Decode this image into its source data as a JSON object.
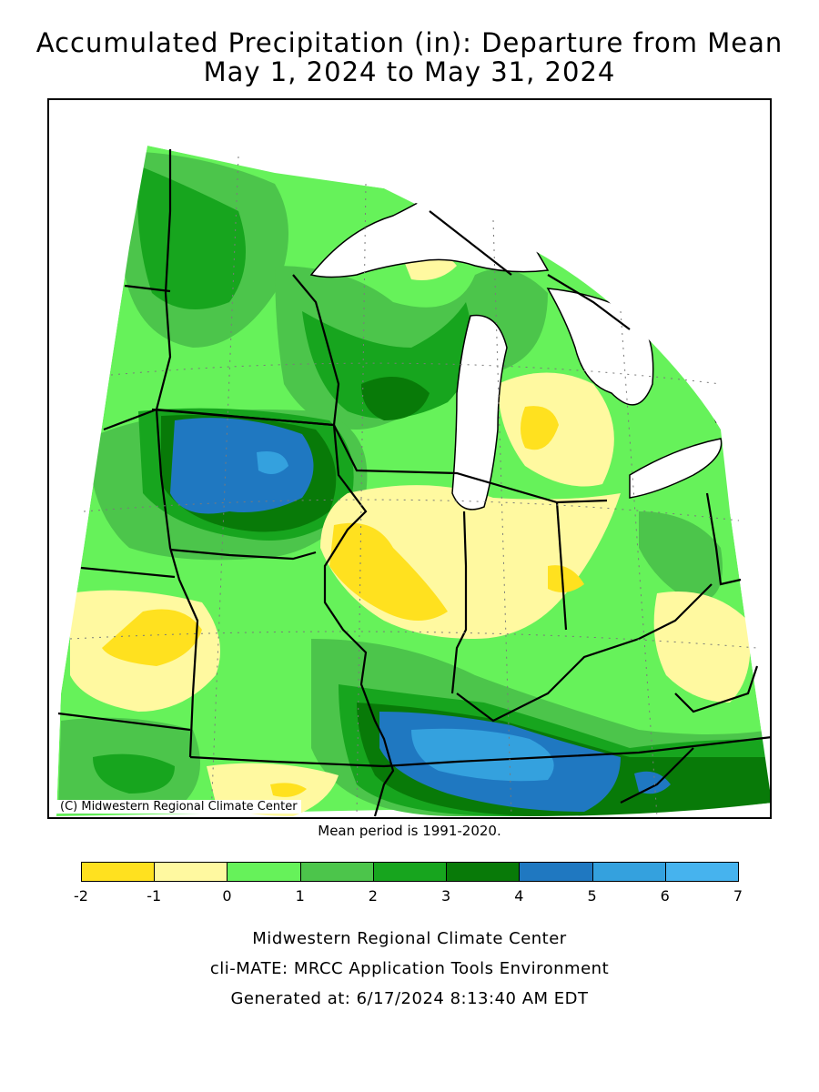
{
  "title": {
    "line1": "Accumulated Precipitation (in): Departure from Mean",
    "line2": "May 1, 2024 to May 31, 2024"
  },
  "map": {
    "copyright": "(C) Midwestern Regional Climate Center",
    "mean_period": "Mean period is 1991-2020."
  },
  "legend": {
    "ticks": [
      "-2",
      "-1",
      "0",
      "1",
      "2",
      "3",
      "4",
      "5",
      "6",
      "7"
    ],
    "colors": [
      "#ffe11f",
      "#fff9a0",
      "#66f25a",
      "#4cc54b",
      "#17a51e",
      "#087a08",
      "#1f78c1",
      "#34a1de",
      "#46b3ee"
    ]
  },
  "footer": {
    "line1": "Midwestern Regional Climate Center",
    "line2": "cli-MATE: MRCC Application Tools Environment",
    "line3": "Generated at: 6/17/2024 8:13:40 AM EDT"
  }
}
